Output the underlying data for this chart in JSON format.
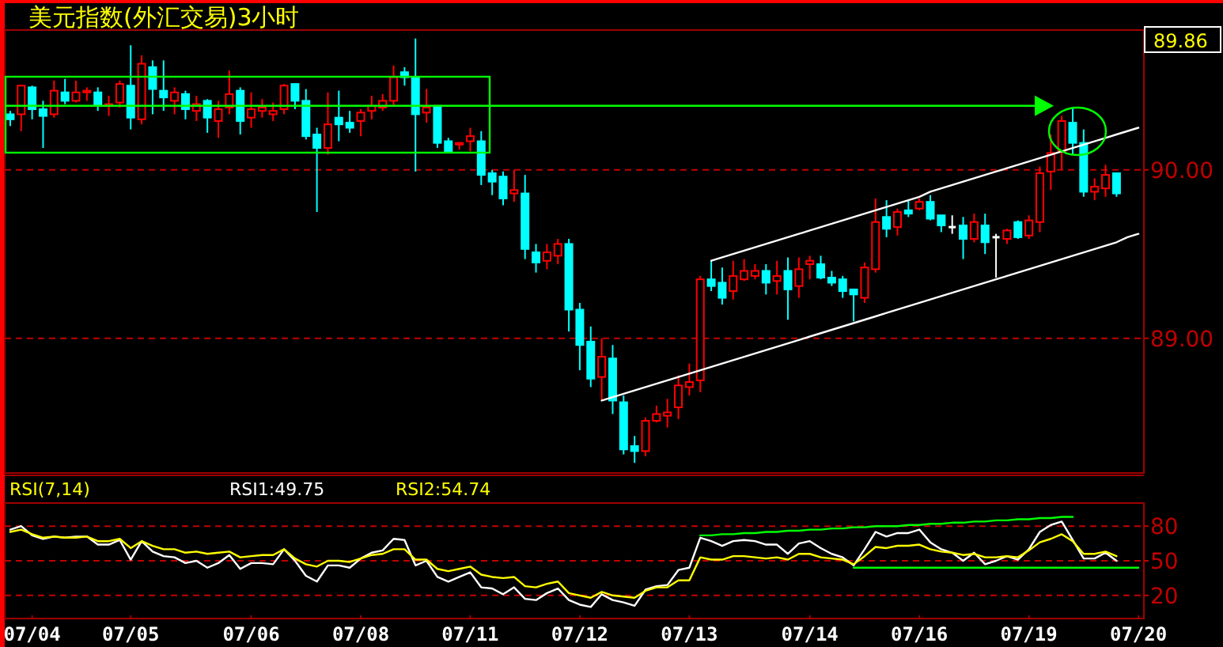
{
  "chart_data": [
    {
      "type": "candlestick",
      "title": "美元指数(外汇交易)3小时",
      "categories": [
        null,
        null,
        null,
        null,
        null,
        null,
        null,
        null,
        null,
        null,
        null,
        null,
        null,
        null,
        null,
        null,
        null,
        null,
        null,
        null,
        null,
        null,
        null,
        null,
        null,
        null,
        null,
        null,
        null,
        null,
        null,
        null,
        null,
        null,
        null,
        null,
        null,
        null,
        null,
        null,
        null,
        null,
        null,
        null,
        null,
        null,
        null,
        null,
        null,
        null,
        null,
        null,
        null,
        null,
        null,
        null,
        null,
        null,
        null,
        null,
        null,
        null,
        null,
        null,
        null,
        null,
        null,
        null,
        null,
        null,
        null,
        null,
        null,
        null,
        null,
        null,
        null,
        null,
        null,
        null,
        null,
        null,
        null,
        null,
        null,
        null,
        null,
        null,
        null,
        null,
        null,
        null,
        null,
        null,
        null,
        null,
        null,
        null,
        null,
        null,
        null,
        null,
        null,
        null
      ],
      "ref_lines": [
        {
          "axis": "y",
          "value": 90.38,
          "color": "#00ff00"
        }
      ],
      "ohlc": [
        [
          90.33,
          90.35,
          90.26,
          90.3
        ],
        [
          90.33,
          90.5,
          90.23,
          90.5
        ],
        [
          90.49,
          90.5,
          90.3,
          90.36
        ],
        [
          90.36,
          90.41,
          90.13,
          90.32
        ],
        [
          90.33,
          90.53,
          90.31,
          90.47
        ],
        [
          90.46,
          90.54,
          90.39,
          90.41
        ],
        [
          90.41,
          90.53,
          90.4,
          90.46
        ],
        [
          90.46,
          90.49,
          90.41,
          90.47
        ],
        [
          90.46,
          90.49,
          90.35,
          90.38
        ],
        [
          90.38,
          90.44,
          90.32,
          90.39
        ],
        [
          90.4,
          90.53,
          90.37,
          90.51
        ],
        [
          90.5,
          90.74,
          90.24,
          90.31
        ],
        [
          90.3,
          90.68,
          90.27,
          90.63
        ],
        [
          90.61,
          90.65,
          90.33,
          90.48
        ],
        [
          90.47,
          90.65,
          90.35,
          90.43
        ],
        [
          90.41,
          90.49,
          90.33,
          90.46
        ],
        [
          90.45,
          90.47,
          90.3,
          90.36
        ],
        [
          90.35,
          90.44,
          90.29,
          90.39
        ],
        [
          90.41,
          90.42,
          90.22,
          90.31
        ],
        [
          90.29,
          90.41,
          90.19,
          90.36
        ],
        [
          90.37,
          90.59,
          90.33,
          90.45
        ],
        [
          90.47,
          90.49,
          90.21,
          90.29
        ],
        [
          90.31,
          90.46,
          90.25,
          90.36
        ],
        [
          90.35,
          90.42,
          90.31,
          90.37
        ],
        [
          90.33,
          90.4,
          90.29,
          90.35
        ],
        [
          90.36,
          90.51,
          90.33,
          90.5
        ],
        [
          90.51,
          90.51,
          90.36,
          90.41
        ],
        [
          90.41,
          90.48,
          90.18,
          90.2
        ],
        [
          90.21,
          90.25,
          89.75,
          90.13
        ],
        [
          90.13,
          90.46,
          90.09,
          90.27
        ],
        [
          90.31,
          90.47,
          90.17,
          90.27
        ],
        [
          90.28,
          90.35,
          90.22,
          90.25
        ],
        [
          90.29,
          90.36,
          90.2,
          90.34
        ],
        [
          90.35,
          90.44,
          90.3,
          90.38
        ],
        [
          90.37,
          90.45,
          90.35,
          90.41
        ],
        [
          90.41,
          90.62,
          90.38,
          90.55
        ],
        [
          90.58,
          90.61,
          90.5,
          90.55
        ],
        [
          90.55,
          90.78,
          89.99,
          90.33
        ],
        [
          90.34,
          90.48,
          90.28,
          90.37
        ],
        [
          90.38,
          90.38,
          90.13,
          90.16
        ],
        [
          90.17,
          90.19,
          90.11,
          90.11
        ],
        [
          90.15,
          90.16,
          90.12,
          90.16
        ],
        [
          90.17,
          90.25,
          90.11,
          90.2
        ],
        [
          90.17,
          90.23,
          89.91,
          89.97
        ],
        [
          89.98,
          90.0,
          89.85,
          89.93
        ],
        [
          89.96,
          89.99,
          89.79,
          89.83
        ],
        [
          89.86,
          90.0,
          89.81,
          89.88
        ],
        [
          89.86,
          89.97,
          89.47,
          89.53
        ],
        [
          89.51,
          89.56,
          89.39,
          89.45
        ],
        [
          89.46,
          89.56,
          89.41,
          89.51
        ],
        [
          89.49,
          89.59,
          89.44,
          89.56
        ],
        [
          89.56,
          89.59,
          89.04,
          89.17
        ],
        [
          89.17,
          89.21,
          88.81,
          88.96
        ],
        [
          88.98,
          89.07,
          88.71,
          88.76
        ],
        [
          88.77,
          89.0,
          88.63,
          88.89
        ],
        [
          88.88,
          88.96,
          88.55,
          88.63
        ],
        [
          88.62,
          88.66,
          88.31,
          88.34
        ],
        [
          88.36,
          88.42,
          88.26,
          88.33
        ],
        [
          88.33,
          88.53,
          88.3,
          88.51
        ],
        [
          88.51,
          88.6,
          88.5,
          88.55
        ],
        [
          88.54,
          88.64,
          88.47,
          88.56
        ],
        [
          88.59,
          88.78,
          88.52,
          88.72
        ],
        [
          88.71,
          88.85,
          88.66,
          88.74
        ],
        [
          88.75,
          89.37,
          88.68,
          89.35
        ],
        [
          89.35,
          89.46,
          89.28,
          89.31
        ],
        [
          89.33,
          89.42,
          89.2,
          89.24
        ],
        [
          89.28,
          89.46,
          89.23,
          89.37
        ],
        [
          89.35,
          89.47,
          89.34,
          89.4
        ],
        [
          89.37,
          89.44,
          89.35,
          89.4
        ],
        [
          89.4,
          89.44,
          89.26,
          89.33
        ],
        [
          89.34,
          89.46,
          89.26,
          89.37
        ],
        [
          89.4,
          89.48,
          89.11,
          89.29
        ],
        [
          89.31,
          89.48,
          89.24,
          89.41
        ],
        [
          89.44,
          89.49,
          89.35,
          89.46
        ],
        [
          89.44,
          89.49,
          89.35,
          89.36
        ],
        [
          89.36,
          89.4,
          89.31,
          89.33
        ],
        [
          89.35,
          89.37,
          89.24,
          89.28
        ],
        [
          89.29,
          89.29,
          89.1,
          89.26
        ],
        [
          89.24,
          89.45,
          89.21,
          89.42
        ],
        [
          89.41,
          89.83,
          89.39,
          89.69
        ],
        [
          89.72,
          89.82,
          89.6,
          89.65
        ],
        [
          89.66,
          89.77,
          89.61,
          89.75
        ],
        [
          89.76,
          89.82,
          89.72,
          89.74
        ],
        [
          89.77,
          89.83,
          89.76,
          89.81
        ],
        [
          89.81,
          89.85,
          89.7,
          89.71
        ],
        [
          89.73,
          89.73,
          89.63,
          89.67
        ],
        [
          89.66,
          89.73,
          89.62,
          89.66
        ],
        [
          89.67,
          89.72,
          89.47,
          89.59
        ],
        [
          89.59,
          89.74,
          89.57,
          89.69
        ],
        [
          89.67,
          89.74,
          89.5,
          89.57
        ],
        [
          89.6,
          89.62,
          89.36,
          89.6
        ],
        [
          89.59,
          89.65,
          89.56,
          89.64
        ],
        [
          89.69,
          89.7,
          89.59,
          89.6
        ],
        [
          89.61,
          89.73,
          89.59,
          89.7
        ],
        [
          89.69,
          90.02,
          89.63,
          89.98
        ],
        [
          89.99,
          90.21,
          89.88,
          90.1
        ],
        [
          90.11,
          90.32,
          90.0,
          90.29
        ],
        [
          90.28,
          90.37,
          90.09,
          90.16
        ],
        [
          90.16,
          90.24,
          89.84,
          89.87
        ],
        [
          89.87,
          89.95,
          89.82,
          89.9
        ],
        [
          89.89,
          90.03,
          89.84,
          89.97
        ],
        [
          89.98,
          89.98,
          89.84,
          89.86
        ],
        null,
        null
      ],
      "colors": [
        "#00ffff",
        "#ff0000",
        "#00ffff",
        "#00ffff",
        "#ff0000",
        "#00ffff",
        "#ff0000",
        "#ff0000",
        "#00ffff",
        "#ff0000",
        "#ff0000",
        "#00ffff",
        "#ff0000",
        "#00ffff",
        "#00ffff",
        "#ff0000",
        "#00ffff",
        "#ff0000",
        "#00ffff",
        "#ff0000",
        "#ff0000",
        "#00ffff",
        "#ff0000",
        "#ff0000",
        "#ff0000",
        "#ff0000",
        "#00ffff",
        "#00ffff",
        "#00ffff",
        "#ff0000",
        "#00ffff",
        "#00ffff",
        "#ff0000",
        "#ff0000",
        "#ff0000",
        "#ff0000",
        "#00ffff",
        "#00ffff",
        "#ff0000",
        "#00ffff",
        "#00ffff",
        "#ff0000",
        "#ff0000",
        "#00ffff",
        "#00ffff",
        "#00ffff",
        "#ff0000",
        "#00ffff",
        "#00ffff",
        "#ff0000",
        "#ff0000",
        "#00ffff",
        "#00ffff",
        "#00ffff",
        "#ff0000",
        "#00ffff",
        "#00ffff",
        "#00ffff",
        "#ff0000",
        "#ff0000",
        "#ff0000",
        "#ff0000",
        "#ff0000",
        "#ff0000",
        "#00ffff",
        "#00ffff",
        "#ff0000",
        "#ff0000",
        "#ff0000",
        "#00ffff",
        "#ff0000",
        "#00ffff",
        "#ff0000",
        "#ff0000",
        "#00ffff",
        "#00ffff",
        "#00ffff",
        "#00ffff",
        "#ff0000",
        "#ff0000",
        "#00ffff",
        "#ff0000",
        "#00ffff",
        "#ff0000",
        "#00ffff",
        "#00ffff",
        "#ffffff",
        "#00ffff",
        "#ff0000",
        "#00ffff",
        "#ffffff",
        "#ff0000",
        "#00ffff",
        "#ff0000",
        "#ff0000",
        "#ff0000",
        "#ff0000",
        "#00ffff",
        "#00ffff",
        "#ff0000",
        "#ff0000",
        "#00ffff",
        null,
        null
      ],
      "series": [
        {
          "type": "line",
          "color": "#ffffff",
          "values": [
            null,
            null,
            null,
            null,
            null,
            null,
            null,
            null,
            null,
            null,
            null,
            null,
            null,
            null,
            null,
            null,
            null,
            null,
            null,
            null,
            null,
            null,
            null,
            null,
            null,
            null,
            null,
            null,
            null,
            null,
            null,
            null,
            null,
            null,
            null,
            null,
            null,
            null,
            null,
            null,
            null,
            null,
            null,
            null,
            null,
            null,
            null,
            null,
            null,
            null,
            null,
            null,
            null,
            null,
            null,
            null,
            null,
            null,
            null,
            null,
            null,
            null,
            null,
            null,
            89.46,
            89.48,
            89.5,
            89.52,
            89.54,
            89.56,
            89.58,
            89.6,
            89.62,
            89.64,
            89.66,
            89.68,
            89.7,
            89.72,
            89.74,
            89.76,
            89.78,
            89.8,
            89.82,
            89.84,
            89.87,
            89.89,
            89.91,
            89.93,
            89.95,
            89.97,
            89.99,
            90.01,
            90.03,
            90.05,
            90.07,
            90.09,
            90.11,
            90.13,
            90.15,
            90.17,
            90.19,
            90.21,
            90.23,
            90.25
          ]
        },
        {
          "type": "line",
          "color": "#ffffff",
          "values": [
            null,
            null,
            null,
            null,
            null,
            null,
            null,
            null,
            null,
            null,
            null,
            null,
            null,
            null,
            null,
            null,
            null,
            null,
            null,
            null,
            null,
            null,
            null,
            null,
            null,
            null,
            null,
            null,
            null,
            null,
            null,
            null,
            null,
            null,
            null,
            null,
            null,
            null,
            null,
            null,
            null,
            null,
            null,
            null,
            null,
            null,
            null,
            null,
            null,
            null,
            null,
            null,
            null,
            null,
            88.63,
            88.65,
            88.67,
            88.69,
            88.71,
            88.73,
            88.75,
            88.77,
            88.79,
            88.81,
            88.83,
            88.85,
            88.87,
            88.89,
            88.91,
            88.93,
            88.95,
            88.97,
            88.99,
            89.01,
            89.03,
            89.05,
            89.07,
            89.09,
            89.11,
            89.13,
            89.15,
            89.17,
            89.19,
            89.21,
            89.23,
            89.25,
            89.27,
            89.29,
            89.31,
            89.33,
            89.35,
            89.37,
            89.39,
            89.41,
            89.43,
            89.45,
            89.47,
            89.49,
            89.51,
            89.53,
            89.55,
            89.57,
            89.6,
            89.62
          ]
        }
      ],
      "ylim": [
        88.2,
        90.83
      ],
      "yticks": [
        {
          "value": 90,
          "label": "90.00"
        },
        {
          "value": 89,
          "label": "89.00"
        }
      ],
      "grid": "y",
      "tick_labels": "y",
      "annotations": [
        "89.86"
      ]
    },
    {
      "type": "line",
      "title": "RSI(7,14)",
      "categories": [
        null,
        null,
        "07/04",
        null,
        null,
        null,
        null,
        null,
        null,
        null,
        null,
        "07/05",
        null,
        null,
        null,
        null,
        null,
        null,
        null,
        null,
        null,
        null,
        "07/06",
        null,
        null,
        null,
        null,
        null,
        null,
        null,
        null,
        null,
        "07/08",
        null,
        null,
        null,
        null,
        null,
        null,
        null,
        null,
        null,
        "07/11",
        null,
        null,
        null,
        null,
        null,
        null,
        null,
        null,
        null,
        "07/12",
        null,
        null,
        null,
        null,
        null,
        null,
        null,
        null,
        null,
        "07/13",
        null,
        null,
        null,
        null,
        null,
        null,
        null,
        null,
        null,
        null,
        "07/14",
        null,
        null,
        null,
        null,
        null,
        null,
        null,
        null,
        null,
        "07/16",
        null,
        null,
        null,
        null,
        null,
        null,
        null,
        null,
        null,
        "07/19",
        null,
        null,
        null,
        null,
        null,
        null,
        null,
        null,
        null,
        "07/20"
      ],
      "series": [
        {
          "name": "RSI1:49.75",
          "color": "#ffffff",
          "values": [
            77,
            80,
            72,
            69,
            71,
            70,
            71,
            71,
            64,
            64,
            68,
            51,
            67,
            58,
            54,
            53,
            48,
            50,
            44,
            48,
            55,
            43,
            48,
            48,
            47,
            60,
            50,
            37,
            32,
            46,
            46,
            44,
            52,
            57,
            59,
            69,
            68,
            46,
            50,
            36,
            32,
            36,
            40,
            27,
            26,
            21,
            27,
            17,
            16,
            22,
            26,
            16,
            12,
            10,
            21,
            16,
            14,
            11,
            25,
            28,
            29,
            42,
            44,
            70,
            67,
            63,
            67,
            68,
            67,
            64,
            64,
            56,
            65,
            67,
            61,
            56,
            53,
            46,
            60,
            75,
            71,
            74,
            74,
            77,
            66,
            60,
            57,
            50,
            57,
            47,
            50,
            54,
            51,
            60,
            75,
            81,
            84,
            68,
            52,
            52,
            57,
            50,
            null,
            null
          ]
        },
        {
          "name": "RSI2:54.74",
          "color": "#ffff00",
          "values": [
            75,
            77,
            73,
            70,
            71,
            70,
            70,
            71,
            67,
            67,
            69,
            61,
            67,
            63,
            60,
            60,
            57,
            58,
            56,
            57,
            58,
            53,
            54,
            55,
            55,
            60,
            52,
            47,
            45,
            50,
            50,
            49,
            52,
            55,
            56,
            60,
            60,
            51,
            51,
            43,
            41,
            43,
            45,
            38,
            36,
            35,
            36,
            28,
            27,
            30,
            32,
            22,
            20,
            18,
            23,
            20,
            19,
            18,
            24,
            27,
            27,
            33,
            33,
            53,
            51,
            51,
            54,
            54,
            53,
            52,
            53,
            51,
            56,
            56,
            53,
            52,
            51,
            47,
            54,
            62,
            61,
            63,
            63,
            64,
            60,
            58,
            57,
            55,
            56,
            53,
            53,
            54,
            53,
            59,
            66,
            69,
            73,
            67,
            56,
            56,
            58,
            54,
            null,
            null
          ]
        },
        {
          "color": "#00ff00",
          "values": [
            null,
            null,
            null,
            null,
            null,
            null,
            null,
            null,
            null,
            null,
            null,
            null,
            null,
            null,
            null,
            null,
            null,
            null,
            null,
            null,
            null,
            null,
            null,
            null,
            null,
            null,
            null,
            null,
            null,
            null,
            null,
            null,
            null,
            null,
            null,
            null,
            null,
            null,
            null,
            null,
            null,
            null,
            null,
            null,
            null,
            null,
            null,
            null,
            null,
            null,
            null,
            null,
            null,
            null,
            null,
            null,
            null,
            null,
            null,
            null,
            null,
            null,
            null,
            72,
            72,
            73,
            73,
            74,
            74,
            75,
            75,
            76,
            76,
            77,
            77,
            78,
            78,
            79,
            79,
            80,
            80,
            80,
            81,
            81,
            82,
            82,
            83,
            83,
            84,
            84,
            85,
            85,
            86,
            86,
            87,
            87,
            88,
            88,
            null,
            null,
            null,
            null,
            null,
            null
          ]
        },
        {
          "color": "#00ff00",
          "values": [
            null,
            null,
            null,
            null,
            null,
            null,
            null,
            null,
            null,
            null,
            null,
            null,
            null,
            null,
            null,
            null,
            null,
            null,
            null,
            null,
            null,
            null,
            null,
            null,
            null,
            null,
            null,
            null,
            null,
            null,
            null,
            null,
            null,
            null,
            null,
            null,
            null,
            null,
            null,
            null,
            null,
            null,
            null,
            null,
            null,
            null,
            null,
            null,
            null,
            null,
            null,
            null,
            null,
            null,
            null,
            null,
            null,
            null,
            null,
            null,
            null,
            null,
            null,
            null,
            null,
            null,
            null,
            null,
            null,
            null,
            null,
            null,
            null,
            null,
            null,
            null,
            null,
            44,
            44,
            44,
            44,
            44,
            44,
            44,
            44,
            44,
            44,
            44,
            44,
            44,
            44,
            44,
            44,
            44,
            44,
            44,
            44,
            44,
            44,
            44,
            44,
            44,
            44,
            44
          ]
        }
      ],
      "ylim": [
        0,
        100
      ],
      "yticks": [
        20,
        50,
        80
      ],
      "grid": "y",
      "legend": "top"
    }
  ]
}
